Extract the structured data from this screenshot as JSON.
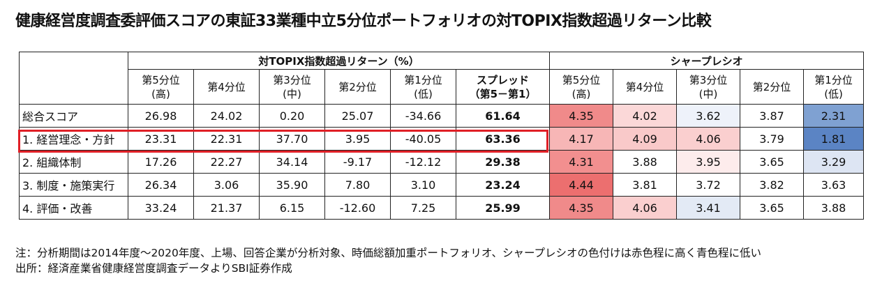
{
  "title": "健康経営度調査委評価スコアの東証33業種中立5分位ポートフォリオの対TOPIX指数超過リターン比較",
  "table": {
    "group_headers": {
      "excess_return": "対TOPIX指数超過リターン（%）",
      "sharpe": "シャープレシオ"
    },
    "excess_columns": [
      {
        "line1": "第5分位",
        "line2": "(高)"
      },
      {
        "line1": "第4分位",
        "line2": ""
      },
      {
        "line1": "第3分位",
        "line2": "(中)"
      },
      {
        "line1": "第2分位",
        "line2": ""
      },
      {
        "line1": "第1分位",
        "line2": "(低)"
      },
      {
        "line1": "スプレッド",
        "line2": "（第5－第1）"
      }
    ],
    "sharpe_columns": [
      {
        "line1": "第5分位",
        "line2": "(高)"
      },
      {
        "line1": "第4分位",
        "line2": ""
      },
      {
        "line1": "第3分位",
        "line2": "(中)"
      },
      {
        "line1": "第2分位",
        "line2": ""
      },
      {
        "line1": "第1分位",
        "line2": "(低)"
      }
    ],
    "rows": [
      {
        "label": "総合スコア",
        "excess": [
          "26.98",
          "24.02",
          "0.20",
          "25.07",
          "-34.66",
          "61.64"
        ],
        "sharpe": [
          "4.35",
          "4.02",
          "3.62",
          "3.87",
          "2.31"
        ],
        "sharpe_colors": [
          "#f08a8a",
          "#fbd8d8",
          "#eef2fa",
          "#ffffff",
          "#7fa1d2"
        ]
      },
      {
        "label": "1.  経営理念・方針",
        "excess": [
          "23.31",
          "22.31",
          "37.70",
          "3.95",
          "-40.05",
          "63.36"
        ],
        "sharpe": [
          "4.17",
          "4.09",
          "4.06",
          "3.79",
          "1.81"
        ],
        "sharpe_colors": [
          "#f7b6b6",
          "#f9c9c9",
          "#facfcf",
          "#ffffff",
          "#5b84c4"
        ]
      },
      {
        "label": "2.  組織体制",
        "excess": [
          "17.26",
          "22.27",
          "34.14",
          "-9.17",
          "-12.12",
          "29.38"
        ],
        "sharpe": [
          "4.31",
          "3.88",
          "3.95",
          "3.65",
          "3.29"
        ],
        "sharpe_colors": [
          "#f28f8f",
          "#ffffff",
          "#fdecec",
          "#ffffff",
          "#dde5f3"
        ]
      },
      {
        "label": "3.  制度・施策実行",
        "excess": [
          "26.34",
          "3.06",
          "35.90",
          "7.80",
          "3.10",
          "23.24"
        ],
        "sharpe": [
          "4.44",
          "3.81",
          "3.72",
          "3.82",
          "3.63"
        ],
        "sharpe_colors": [
          "#ec6f6f",
          "#ffffff",
          "#ffffff",
          "#ffffff",
          "#ffffff"
        ]
      },
      {
        "label": "4.  評価・改善",
        "excess": [
          "33.24",
          "21.37",
          "6.15",
          "-12.60",
          "7.25",
          "25.99"
        ],
        "sharpe": [
          "4.35",
          "4.06",
          "3.41",
          "3.65",
          "3.88"
        ],
        "sharpe_colors": [
          "#f08a8a",
          "#facfcf",
          "#e3eaf5",
          "#ffffff",
          "#ffffff"
        ]
      }
    ]
  },
  "notes": {
    "line1": "注：分析期間は2014年度～2020年度、上場、回答企業が分析対象、時価総額加重ポートフォリオ、シャープレシオの色付けは赤色程に高く青色程に低い",
    "line2": "出所：経済産業省健康経営度調査データよりSBI証券作成"
  }
}
